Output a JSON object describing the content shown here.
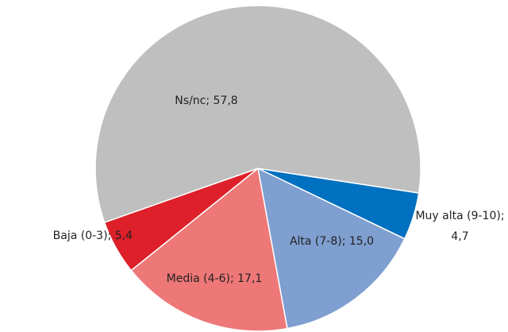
{
  "chart_data": {
    "type": "pie",
    "categories": [
      "Muy alta (9-10)",
      "Alta (7-8)",
      "Media (4-6)",
      "Baja (0-3)",
      "Ns/nc"
    ],
    "values": [
      4.7,
      15.0,
      17.1,
      5.4,
      57.8
    ],
    "value_labels": [
      "4,7",
      "15,0",
      "17,1",
      "5,4",
      "57,8"
    ],
    "colors": [
      "#0070c0",
      "#7f9fd0",
      "#ee7777",
      "#dd2029",
      "#bfbfbf"
    ]
  }
}
